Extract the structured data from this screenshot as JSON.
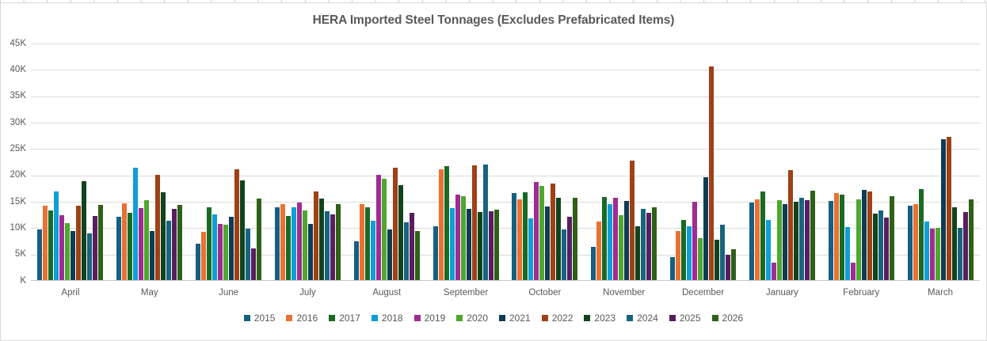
{
  "chart_data": {
    "type": "bar",
    "title": "HERA Imported Steel Tonnages (Excludes Prefabricated Items)",
    "categories": [
      "April",
      "May",
      "June",
      "July",
      "August",
      "September",
      "October",
      "November",
      "December",
      "January",
      "February",
      "March"
    ],
    "series": [
      {
        "name": "2015",
        "color": "#156082",
        "values": [
          9.8,
          12.1,
          7.1,
          13.9,
          7.5,
          10.4,
          16.6,
          6.5,
          4.5,
          14.9,
          15.2,
          14.2
        ]
      },
      {
        "name": "2016",
        "color": "#E97132",
        "values": [
          14.2,
          14.7,
          9.3,
          14.5,
          14.5,
          21.2,
          15.4,
          11.3,
          9.4,
          15.5,
          16.6,
          14.5
        ]
      },
      {
        "name": "2017",
        "color": "#196B24",
        "values": [
          13.3,
          12.9,
          13.9,
          12.3,
          13.9,
          21.7,
          16.8,
          15.9,
          11.6,
          16.9,
          16.4,
          17.4
        ]
      },
      {
        "name": "2018",
        "color": "#0F9ED5",
        "values": [
          17.0,
          21.5,
          12.6,
          13.9,
          11.4,
          13.8,
          11.8,
          14.6,
          10.4,
          11.5,
          10.2,
          11.2
        ]
      },
      {
        "name": "2019",
        "color": "#A02B93",
        "values": [
          12.4,
          13.8,
          10.8,
          14.9,
          20.1,
          16.3,
          18.7,
          15.8,
          15.0,
          3.5,
          3.4,
          9.9
        ]
      },
      {
        "name": "2020",
        "color": "#4EA72E",
        "values": [
          10.9,
          15.3,
          10.7,
          13.3,
          19.4,
          16.1,
          18.0,
          12.4,
          8.1,
          15.3,
          15.5,
          10.1
        ]
      },
      {
        "name": "2021",
        "color": "#0F3C54",
        "values": [
          9.5,
          9.4,
          12.1,
          10.8,
          9.8,
          13.6,
          14.1,
          15.1,
          19.7,
          14.6,
          17.3,
          26.9
        ]
      },
      {
        "name": "2022",
        "color": "#9E4116",
        "values": [
          14.2,
          20.1,
          21.1,
          17.0,
          21.5,
          21.9,
          18.4,
          22.8,
          40.7,
          21.0,
          16.9,
          27.3
        ]
      },
      {
        "name": "2023",
        "color": "#11431C",
        "values": [
          18.9,
          16.8,
          19.1,
          15.6,
          18.1,
          13.1,
          15.8,
          10.4,
          7.8,
          15.0,
          12.7,
          14.0
        ]
      },
      {
        "name": "2024",
        "color": "#17647E",
        "values": [
          9.0,
          11.4,
          9.9,
          13.2,
          11.1,
          22.0,
          9.7,
          13.7,
          10.6,
          15.8,
          13.3,
          10.1
        ]
      },
      {
        "name": "2025",
        "color": "#591E5F",
        "values": [
          12.3,
          13.6,
          6.1,
          12.6,
          12.9,
          13.2,
          12.2,
          12.9,
          5.0,
          15.3,
          12.0,
          13.0
        ]
      },
      {
        "name": "2026",
        "color": "#2E6118",
        "values": [
          14.4,
          14.4,
          15.6,
          14.6,
          9.5,
          13.5,
          15.7,
          13.9,
          6.0,
          17.1,
          16.0,
          15.4
        ]
      }
    ],
    "xlabel": "",
    "ylabel": "",
    "ylim": [
      0,
      45
    ],
    "y_step": 5,
    "y_tick_labels": [
      "K",
      "5K",
      "10K",
      "15K",
      "20K",
      "25K",
      "30K",
      "35K",
      "40K",
      "45K"
    ],
    "value_unit": "K",
    "grid": true,
    "legend_position": "bottom"
  },
  "colors": {
    "title_text": "#595959",
    "axis_text": "#595959",
    "gridline": "#d9d9d9",
    "chart_border": "#d9d9d9",
    "background": "#ffffff"
  }
}
